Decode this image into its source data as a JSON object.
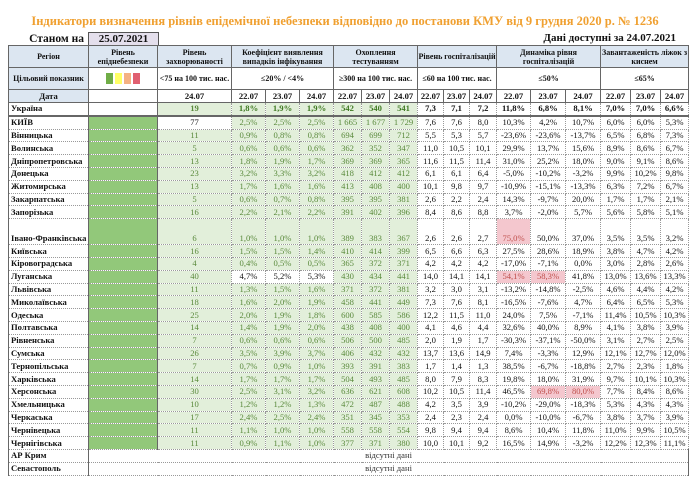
{
  "title": "Індикатори визначення рівнів епідемічної небезпеки відповідно до постанови КМУ від 9 грудня 2020 р. № 1236",
  "as_of_label": "Станом на",
  "as_of_date": "25.07.2021",
  "available_label": "Дані доступні за  24.07.2021",
  "headers": {
    "region": "Регіон",
    "level": "Рівень епіднебезпеки",
    "morbidity": "Рівень захворюваності",
    "coefficient": "Коефіцієнт виявлення випадків інфікування",
    "testing": "Охоплення тестуванням",
    "hospitalization": "Рівень госпіталізацій",
    "dynamics": "Динаміка рівня госпіталізацій",
    "beds": "Завантаженість ліжок з киснем"
  },
  "targets": {
    "label": "Цільовий показник",
    "level_colors": [
      "#70ad47",
      "#ffff66",
      "#f4b183",
      "#e06070"
    ],
    "morbidity": "<75 на 100 тис. нас.",
    "coefficient": "≤20% / <4%",
    "testing": "≥300 на 100 тис. нас.",
    "hospitalization": "≤60 на 100 тис. нас.",
    "dynamics": "≤50%",
    "beds": "≤65%"
  },
  "dates": {
    "label": "Дата",
    "morbidity": "24.07",
    "triple": [
      "22.07",
      "23.07",
      "24.07"
    ]
  },
  "colors": {
    "green_level": "#92c87a",
    "light_green": "#e2efda",
    "alert": "#f4c7ce",
    "alert_text": "#c0504d",
    "title": "#f0a030"
  },
  "rows": [
    {
      "region": "Україна",
      "morb": "19",
      "coef": [
        "1,8%",
        "1,9%",
        "1,9%"
      ],
      "test": [
        "542",
        "540",
        "541"
      ],
      "hosp": [
        "7,3",
        "7,1",
        "7,2"
      ],
      "dyn": [
        "11,8%",
        "6,8%",
        "8,1%"
      ],
      "beds": [
        "7,0%",
        "7,0%",
        "6,6%"
      ]
    },
    {
      "region": "КИЇВ",
      "morb": "77",
      "coef": [
        "2,5%",
        "2,5%",
        "2,5%"
      ],
      "test": [
        "1 665",
        "1 677",
        "1 729"
      ],
      "hosp": [
        "7,6",
        "7,6",
        "8,0"
      ],
      "dyn": [
        "10,3%",
        "4,2%",
        "10,7%"
      ],
      "beds": [
        "6,0%",
        "6,0%",
        "5,3%"
      ],
      "white": [
        "morb"
      ]
    },
    {
      "region": "Вінницька",
      "morb": "11",
      "coef": [
        "0,9%",
        "0,8%",
        "0,8%"
      ],
      "test": [
        "694",
        "699",
        "712"
      ],
      "hosp": [
        "5,5",
        "5,3",
        "5,7"
      ],
      "dyn": [
        "-23,6%",
        "-23,6%",
        "-13,7%"
      ],
      "beds": [
        "6,5%",
        "6,8%",
        "7,3%"
      ]
    },
    {
      "region": "Волинська",
      "morb": "5",
      "coef": [
        "0,6%",
        "0,6%",
        "0,6%"
      ],
      "test": [
        "362",
        "352",
        "347"
      ],
      "hosp": [
        "11,0",
        "10,5",
        "10,1"
      ],
      "dyn": [
        "29,9%",
        "13,7%",
        "15,6%"
      ],
      "beds": [
        "8,9%",
        "8,6%",
        "6,7%"
      ]
    },
    {
      "region": "Дніпропетровська",
      "morb": "13",
      "coef": [
        "1,8%",
        "1,9%",
        "1,7%"
      ],
      "test": [
        "369",
        "369",
        "365"
      ],
      "hosp": [
        "11,6",
        "11,5",
        "11,4"
      ],
      "dyn": [
        "31,0%",
        "25,2%",
        "18,0%"
      ],
      "beds": [
        "9,0%",
        "9,1%",
        "8,6%"
      ]
    },
    {
      "region": "Донецька",
      "morb": "23",
      "coef": [
        "3,2%",
        "3,3%",
        "3,2%"
      ],
      "test": [
        "418",
        "412",
        "412"
      ],
      "hosp": [
        "6,1",
        "6,1",
        "6,4"
      ],
      "dyn": [
        "-5,0%",
        "-10,2%",
        "-3,2%"
      ],
      "beds": [
        "9,9%",
        "10,2%",
        "9,8%"
      ]
    },
    {
      "region": "Житомирська",
      "morb": "13",
      "coef": [
        "1,7%",
        "1,6%",
        "1,6%"
      ],
      "test": [
        "413",
        "408",
        "400"
      ],
      "hosp": [
        "10,1",
        "9,8",
        "9,7"
      ],
      "dyn": [
        "-10,9%",
        "-15,1%",
        "-13,3%"
      ],
      "beds": [
        "6,3%",
        "7,2%",
        "6,7%"
      ]
    },
    {
      "region": "Закарпатська",
      "morb": "5",
      "coef": [
        "0,6%",
        "0,7%",
        "0,8%"
      ],
      "test": [
        "395",
        "395",
        "381"
      ],
      "hosp": [
        "2,6",
        "2,2",
        "2,4"
      ],
      "dyn": [
        "14,3%",
        "-9,7%",
        "20,0%"
      ],
      "beds": [
        "1,7%",
        "1,7%",
        "2,1%"
      ]
    },
    {
      "region": "Запорізька",
      "morb": "16",
      "coef": [
        "2,2%",
        "2,1%",
        "2,2%"
      ],
      "test": [
        "391",
        "402",
        "396"
      ],
      "hosp": [
        "8,4",
        "8,6",
        "8,8"
      ],
      "dyn": [
        "3,7%",
        "-2,0%",
        "5,7%"
      ],
      "beds": [
        "5,6%",
        "5,8%",
        "5,1%"
      ]
    },
    {
      "region": "Івано-Франківська",
      "morb": "6",
      "coef": [
        "1,0%",
        "1,0%",
        "1,0%"
      ],
      "test": [
        "389",
        "383",
        "367"
      ],
      "hosp": [
        "2,6",
        "2,6",
        "2,7"
      ],
      "dyn": [
        "75,0%",
        "50,0%",
        "37,0%"
      ],
      "beds": [
        "3,5%",
        "3,5%",
        "3,2%"
      ],
      "red": [
        "dyn0"
      ],
      "tall": true
    },
    {
      "region": "Київська",
      "morb": "16",
      "coef": [
        "1,5%",
        "1,5%",
        "1,4%"
      ],
      "test": [
        "410",
        "414",
        "399"
      ],
      "hosp": [
        "6,5",
        "6,6",
        "6,3"
      ],
      "dyn": [
        "27,5%",
        "28,6%",
        "18,9%"
      ],
      "beds": [
        "3,8%",
        "4,7%",
        "4,2%"
      ]
    },
    {
      "region": "Кіровоградська",
      "morb": "4",
      "coef": [
        "0,4%",
        "0,5%",
        "0,5%"
      ],
      "test": [
        "365",
        "372",
        "371"
      ],
      "hosp": [
        "4,2",
        "4,2",
        "4,2"
      ],
      "dyn": [
        "-17,0%",
        "-7,1%",
        "0,0%"
      ],
      "beds": [
        "3,0%",
        "2,8%",
        "2,6%"
      ]
    },
    {
      "region": "Луганська",
      "morb": "40",
      "coef": [
        "4,7%",
        "5,2%",
        "5,3%"
      ],
      "test": [
        "430",
        "434",
        "441"
      ],
      "hosp": [
        "14,0",
        "14,1",
        "14,1"
      ],
      "dyn": [
        "54,1%",
        "58,3%",
        "41,8%"
      ],
      "beds": [
        "13,0%",
        "13,6%",
        "13,3%"
      ],
      "white": [
        "coef0",
        "coef1",
        "coef2"
      ],
      "red": [
        "dyn0",
        "dyn1"
      ]
    },
    {
      "region": "Львівська",
      "morb": "11",
      "coef": [
        "1,3%",
        "1,5%",
        "1,6%"
      ],
      "test": [
        "371",
        "372",
        "381"
      ],
      "hosp": [
        "3,2",
        "3,0",
        "3,1"
      ],
      "dyn": [
        "-13,2%",
        "-14,8%",
        "-2,5%"
      ],
      "beds": [
        "4,6%",
        "4,4%",
        "4,2%"
      ]
    },
    {
      "region": "Миколаївська",
      "morb": "18",
      "coef": [
        "1,6%",
        "2,0%",
        "1,9%"
      ],
      "test": [
        "458",
        "441",
        "449"
      ],
      "hosp": [
        "7,3",
        "7,6",
        "8,1"
      ],
      "dyn": [
        "-16,5%",
        "-7,6%",
        "4,7%"
      ],
      "beds": [
        "6,4%",
        "6,5%",
        "5,3%"
      ]
    },
    {
      "region": "Одеська",
      "morb": "25",
      "coef": [
        "2,0%",
        "1,9%",
        "1,8%"
      ],
      "test": [
        "600",
        "585",
        "586"
      ],
      "hosp": [
        "12,2",
        "11,5",
        "11,0"
      ],
      "dyn": [
        "24,0%",
        "7,5%",
        "-7,1%"
      ],
      "beds": [
        "11,4%",
        "10,5%",
        "10,3%"
      ]
    },
    {
      "region": "Полтавська",
      "morb": "14",
      "coef": [
        "1,4%",
        "1,9%",
        "2,0%"
      ],
      "test": [
        "438",
        "408",
        "400"
      ],
      "hosp": [
        "4,1",
        "4,6",
        "4,4"
      ],
      "dyn": [
        "32,6%",
        "40,0%",
        "8,9%"
      ],
      "beds": [
        "4,1%",
        "3,8%",
        "3,9%"
      ]
    },
    {
      "region": "Рівненська",
      "morb": "7",
      "coef": [
        "0,6%",
        "0,6%",
        "0,6%"
      ],
      "test": [
        "506",
        "500",
        "485"
      ],
      "hosp": [
        "2,0",
        "1,9",
        "1,7"
      ],
      "dyn": [
        "-30,3%",
        "-37,1%",
        "-50,0%"
      ],
      "beds": [
        "3,1%",
        "2,7%",
        "2,5%"
      ]
    },
    {
      "region": "Сумська",
      "morb": "26",
      "coef": [
        "3,5%",
        "3,9%",
        "3,7%"
      ],
      "test": [
        "406",
        "432",
        "432"
      ],
      "hosp": [
        "13,7",
        "13,6",
        "14,9"
      ],
      "dyn": [
        "7,4%",
        "-3,3%",
        "12,9%"
      ],
      "beds": [
        "12,1%",
        "12,7%",
        "12,0%"
      ]
    },
    {
      "region": "Тернопільська",
      "morb": "7",
      "coef": [
        "0,7%",
        "0,9%",
        "1,0%"
      ],
      "test": [
        "393",
        "391",
        "383"
      ],
      "hosp": [
        "1,7",
        "1,4",
        "1,3"
      ],
      "dyn": [
        "38,5%",
        "-6,7%",
        "-18,8%"
      ],
      "beds": [
        "2,7%",
        "2,3%",
        "1,8%"
      ]
    },
    {
      "region": "Харківська",
      "morb": "14",
      "coef": [
        "1,7%",
        "1,7%",
        "1,7%"
      ],
      "test": [
        "504",
        "493",
        "485"
      ],
      "hosp": [
        "8,0",
        "7,9",
        "8,3"
      ],
      "dyn": [
        "19,8%",
        "18,0%",
        "31,9%"
      ],
      "beds": [
        "9,7%",
        "10,1%",
        "10,3%"
      ]
    },
    {
      "region": "Херсонська",
      "morb": "30",
      "coef": [
        "2,5%",
        "3,1%",
        "3,2%"
      ],
      "test": [
        "636",
        "621",
        "608"
      ],
      "hosp": [
        "10,2",
        "10,5",
        "11,4"
      ],
      "dyn": [
        "46,5%",
        "69,8%",
        "80,0%"
      ],
      "beds": [
        "7,7%",
        "8,4%",
        "8,6%"
      ],
      "red": [
        "dyn1",
        "dyn2"
      ]
    },
    {
      "region": "Хмельницька",
      "morb": "10",
      "coef": [
        "1,2%",
        "1,2%",
        "1,3%"
      ],
      "test": [
        "472",
        "487",
        "488"
      ],
      "hosp": [
        "4,2",
        "3,5",
        "3,9"
      ],
      "dyn": [
        "-10,2%",
        "-29,0%",
        "-18,3%"
      ],
      "beds": [
        "5,3%",
        "4,3%",
        "4,3%"
      ]
    },
    {
      "region": "Черкаська",
      "morb": "17",
      "coef": [
        "2,4%",
        "2,5%",
        "2,4%"
      ],
      "test": [
        "351",
        "345",
        "353"
      ],
      "hosp": [
        "2,4",
        "2,3",
        "2,4"
      ],
      "dyn": [
        "0,0%",
        "-10,0%",
        "-6,7%"
      ],
      "beds": [
        "3,8%",
        "3,7%",
        "3,9%"
      ]
    },
    {
      "region": "Чернівецька",
      "morb": "11",
      "coef": [
        "1,1%",
        "1,0%",
        "1,0%"
      ],
      "test": [
        "558",
        "558",
        "554"
      ],
      "hosp": [
        "9,8",
        "9,4",
        "9,4"
      ],
      "dyn": [
        "8,6%",
        "10,4%",
        "11,8%"
      ],
      "beds": [
        "11,0%",
        "9,9%",
        "10,5%"
      ]
    },
    {
      "region": "Чернігівська",
      "morb": "11",
      "coef": [
        "0,9%",
        "1,1%",
        "1,0%"
      ],
      "test": [
        "377",
        "371",
        "380"
      ],
      "hosp": [
        "10,0",
        "10,1",
        "9,2"
      ],
      "dyn": [
        "16,5%",
        "14,9%",
        "-3,2%"
      ],
      "beds": [
        "12,2%",
        "12,3%",
        "11,1%"
      ]
    }
  ],
  "missing_rows": [
    {
      "region": "АР Крим",
      "note": "відсутні дані"
    },
    {
      "region": "Севастополь",
      "note": "відсутні дані"
    }
  ]
}
